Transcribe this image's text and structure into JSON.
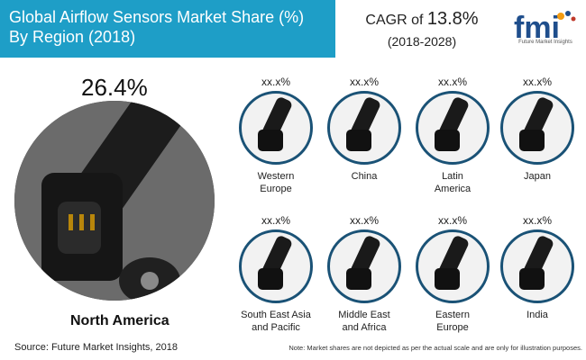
{
  "title": {
    "line1": "Global Airflow Sensors Market Share (%)",
    "line2": "By Region (2018)"
  },
  "cagr": {
    "prefix": "CAGR of",
    "value": "13.8%",
    "period": "(2018-2028)"
  },
  "logo": {
    "mark": "fmi",
    "caption": "Future Market Insights"
  },
  "featured": {
    "value": "26.4%",
    "label": "North America"
  },
  "regions": [
    {
      "value": "xx.x%",
      "line1": "Western",
      "line2": "Europe"
    },
    {
      "value": "xx.x%",
      "line1": "China",
      "line2": ""
    },
    {
      "value": "xx.x%",
      "line1": "Latin",
      "line2": "America"
    },
    {
      "value": "xx.x%",
      "line1": "Japan",
      "line2": ""
    },
    {
      "value": "xx.x%",
      "line1": "South East Asia",
      "line2": "and Pacific"
    },
    {
      "value": "xx.x%",
      "line1": "Middle East",
      "line2": "and Africa"
    },
    {
      "value": "xx.x%",
      "line1": "Eastern",
      "line2": "Europe"
    },
    {
      "value": "xx.x%",
      "line1": "India",
      "line2": ""
    }
  ],
  "footer": {
    "source": "Source: Future Market Insights, 2018",
    "note": "Note: Market shares are not depicted as per the actual scale and are only for illustration purposes."
  },
  "colors": {
    "title_bg": "#1e9ec7",
    "circle_border": "#1a5276",
    "logo_orange": "#f39c12",
    "logo_blue": "#1f4e8c"
  }
}
